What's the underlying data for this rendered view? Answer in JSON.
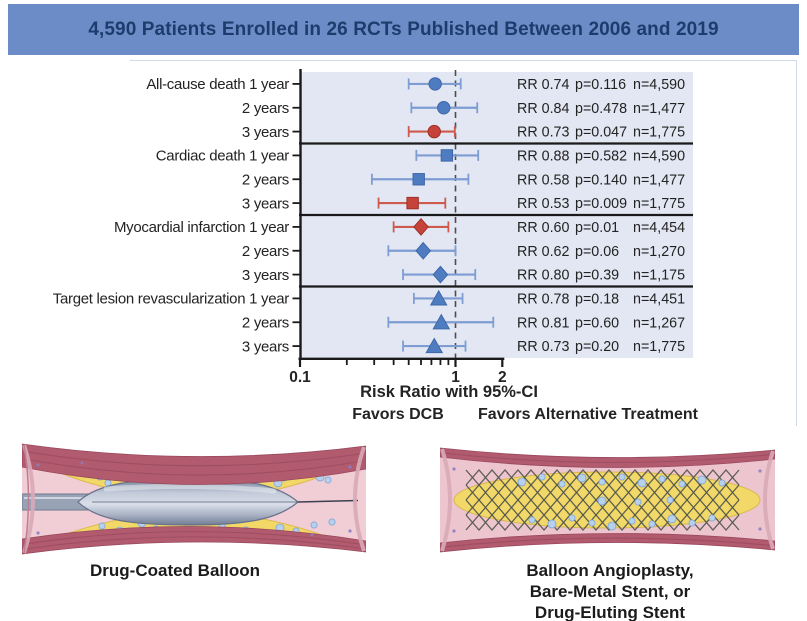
{
  "banner": {
    "title": "4,590 Patients Enrolled in 26 RCTs Published Between 2006 and 2019",
    "bg_color": "#6c8cc7",
    "text_color": "#1d3c6d"
  },
  "chart_data": {
    "type": "forest",
    "x_axis": {
      "scale": "log",
      "label": "Risk Ratio with 95%-CI",
      "major_ticks": [
        "0.1",
        "1",
        "2"
      ],
      "minor_ticks": [
        0.2,
        0.3,
        0.4,
        0.5,
        0.6,
        0.7,
        0.8,
        0.9
      ],
      "range": [
        0.1,
        2
      ],
      "reference_line": 1
    },
    "favors_left": "Favors DCB",
    "favors_right": "Favors Alternative Treatment",
    "annotation_prefixes": {
      "rr": "RR",
      "p": "p=",
      "n": "n="
    },
    "colors": {
      "nonsignificant_marker": "#4f7cc0",
      "nonsignificant_line": "#7e9dd3",
      "significant_marker": "#c5433a",
      "significant_line": "#cd5a4d",
      "panel_bg": "#e3e7f3",
      "axis": "#1a1a1a"
    },
    "groups": [
      {
        "outcome": "All-cause death",
        "marker": "circle",
        "rows": [
          {
            "label": "All-cause death 1 year",
            "rr": "0.74",
            "ci_low": 0.5,
            "ci_high": 1.08,
            "p": "0.116",
            "n": "4,590",
            "significant": false
          },
          {
            "label": "2 years",
            "rr": "0.84",
            "ci_low": 0.52,
            "ci_high": 1.38,
            "p": "0.478",
            "n": "1,477",
            "significant": false
          },
          {
            "label": "3 years",
            "rr": "0.73",
            "ci_low": 0.5,
            "ci_high": 0.99,
            "p": "0.047",
            "n": "1,775",
            "significant": true
          }
        ]
      },
      {
        "outcome": "Cardiac death",
        "marker": "square",
        "rows": [
          {
            "label": "Cardiac death 1 year",
            "rr": "0.88",
            "ci_low": 0.56,
            "ci_high": 1.4,
            "p": "0.582",
            "n": "4,590",
            "significant": false
          },
          {
            "label": "2 years",
            "rr": "0.58",
            "ci_low": 0.29,
            "ci_high": 1.21,
            "p": "0.140",
            "n": "1,477",
            "significant": false
          },
          {
            "label": "3 years",
            "rr": "0.53",
            "ci_low": 0.32,
            "ci_high": 0.86,
            "p": "0.009",
            "n": "1,775",
            "significant": true
          }
        ]
      },
      {
        "outcome": "Myocardial infarction",
        "marker": "diamond",
        "rows": [
          {
            "label": "Myocardial infarction 1 year",
            "rr": "0.60",
            "ci_low": 0.4,
            "ci_high": 0.9,
            "p": "0.01",
            "n": "4,454",
            "significant": true
          },
          {
            "label": "2 years",
            "rr": "0.62",
            "ci_low": 0.37,
            "ci_high": 1.0,
            "p": "0.06",
            "n": "1,270",
            "significant": false
          },
          {
            "label": "3 years",
            "rr": "0.80",
            "ci_low": 0.46,
            "ci_high": 1.34,
            "p": "0.39",
            "n": "1,175",
            "significant": false
          }
        ]
      },
      {
        "outcome": "Target lesion revascularization",
        "marker": "triangle",
        "rows": [
          {
            "label": "Target lesion revascularization 1 year",
            "rr": "0.78",
            "ci_low": 0.54,
            "ci_high": 1.11,
            "p": "0.18",
            "n": "4,451",
            "significant": false
          },
          {
            "label": "2 years",
            "rr": "0.81",
            "ci_low": 0.37,
            "ci_high": 1.75,
            "p": "0.60",
            "n": "1,267",
            "significant": false
          },
          {
            "label": "3 years",
            "rr": "0.73",
            "ci_low": 0.46,
            "ci_high": 1.16,
            "p": "0.20",
            "n": "1,775",
            "significant": false
          }
        ]
      }
    ]
  },
  "illustrations": {
    "left": {
      "caption": "Drug-Coated Balloon"
    },
    "right": {
      "caption_lines": [
        "Balloon Angioplasty,",
        "Bare-Metal Stent, or",
        "Drug-Eluting Stent"
      ]
    }
  }
}
